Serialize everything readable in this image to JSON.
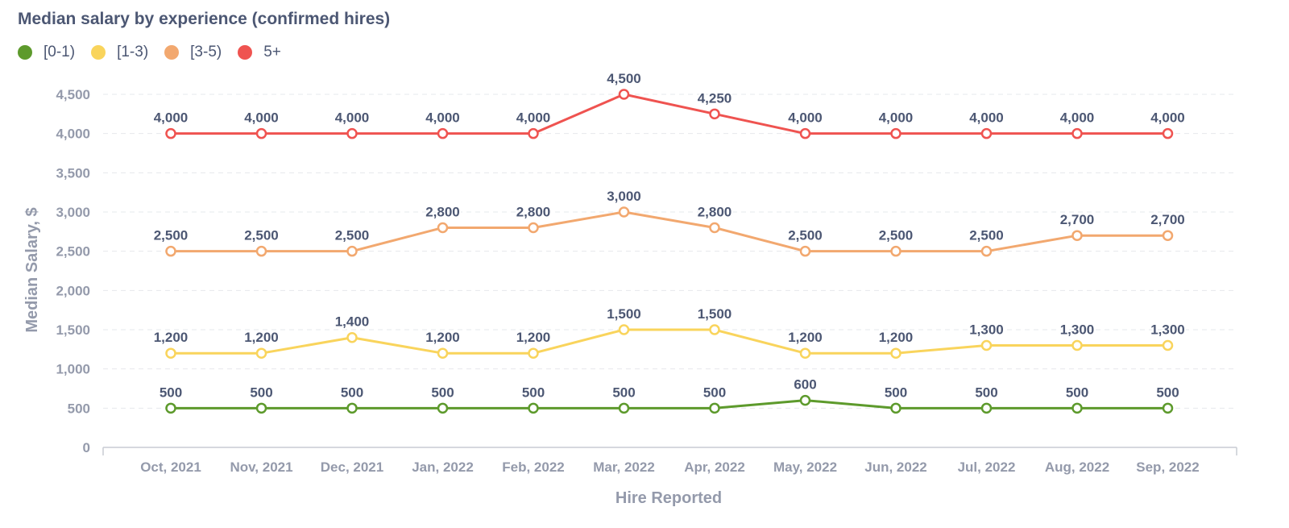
{
  "chart_data": {
    "type": "line",
    "title": "Median salary by experience (confirmed hires)",
    "xlabel": "Hire Reported",
    "ylabel": "Median Salary, $",
    "ylim": [
      0,
      4500
    ],
    "yticks": [
      0,
      500,
      1000,
      1500,
      2000,
      2500,
      3000,
      3500,
      4000,
      4500
    ],
    "ytick_labels": [
      "0",
      "500",
      "1,000",
      "1,500",
      "2,000",
      "2,500",
      "3,000",
      "3,500",
      "4,000",
      "4,500"
    ],
    "grid": "horizontal dashed",
    "legend_position": "top-left",
    "categories": [
      "Oct, 2021",
      "Nov, 2021",
      "Dec, 2021",
      "Jan, 2022",
      "Feb, 2022",
      "Mar, 2022",
      "Apr, 2022",
      "May, 2022",
      "Jun, 2022",
      "Jul, 2022",
      "Aug, 2022",
      "Sep, 2022"
    ],
    "series": [
      {
        "name": "[0-1)",
        "color": "#509ee3",
        "values": [
          500,
          500,
          500,
          500,
          500,
          500,
          500,
          600,
          500,
          500,
          500,
          500
        ],
        "labels": [
          "500",
          "500",
          "500",
          "500",
          "500",
          "500",
          "500",
          "600",
          "500",
          "500",
          "500",
          "500"
        ]
      },
      {
        "name": "[1-3)",
        "color": "#f9d45c",
        "values": [
          1200,
          1200,
          1400,
          1200,
          1200,
          1500,
          1500,
          1200,
          1200,
          1300,
          1300,
          1300
        ],
        "labels": [
          "1,200",
          "1,200",
          "1,400",
          "1,200",
          "1,200",
          "1,500",
          "1,500",
          "1,200",
          "1,200",
          "1,300",
          "1,300",
          "1,300"
        ]
      },
      {
        "name": "[3-5)",
        "color": "#f2a86f",
        "values": [
          2500,
          2500,
          2500,
          2800,
          2800,
          3000,
          2800,
          2500,
          2500,
          2500,
          2700,
          2700
        ],
        "labels": [
          "2,500",
          "2,500",
          "2,500",
          "2,800",
          "2,800",
          "3,000",
          "2,800",
          "2,500",
          "2,500",
          "2,500",
          "2,700",
          "2,700"
        ]
      },
      {
        "name": "5+",
        "color": "#ef5350",
        "values": [
          4000,
          4000,
          4000,
          4000,
          4000,
          4500,
          4250,
          4000,
          4000,
          4000,
          4000,
          4000
        ],
        "labels": [
          "4,000",
          "4,000",
          "4,000",
          "4,000",
          "4,000",
          "4,500",
          "4,250",
          "4,000",
          "4,000",
          "4,000",
          "4,000",
          "4,000"
        ]
      }
    ]
  }
}
